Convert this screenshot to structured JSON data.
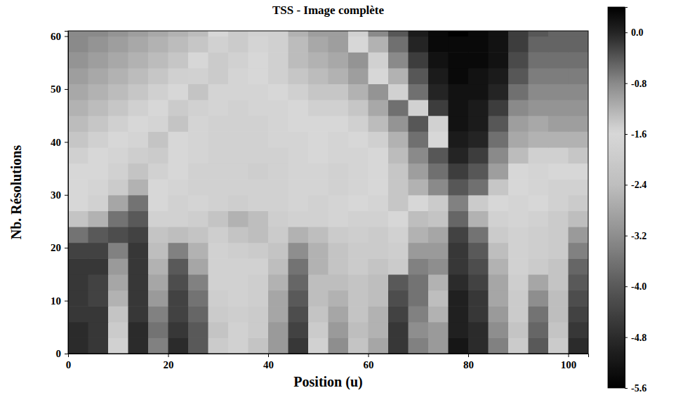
{
  "chart_data": {
    "type": "heatmap",
    "title": "TSS - Image complète",
    "x_label": "Position (u)",
    "y_label": "Nb. Résolutions",
    "xlim": [
      0,
      104
    ],
    "ylim": [
      0,
      61
    ],
    "xticks": [
      0,
      20,
      40,
      60,
      80,
      100
    ],
    "yticks": [
      0,
      10,
      20,
      30,
      40,
      50,
      60
    ],
    "x_edges": [
      0,
      4,
      8,
      12,
      16,
      20,
      24,
      28,
      32,
      36,
      40,
      44,
      48,
      52,
      56,
      60,
      64,
      68,
      72,
      76,
      80,
      84,
      88,
      92,
      96,
      100,
      104
    ],
    "y_edges": [
      0,
      3,
      6,
      9,
      12,
      15,
      18,
      21,
      24,
      27,
      30,
      33,
      36,
      39,
      42,
      45,
      48,
      51,
      54,
      57,
      60,
      63
    ],
    "z": [
      [
        -4.8,
        -4.6,
        -1.8,
        -4.8,
        -3.4,
        -4.8,
        -4.0,
        -2.0,
        -1.8,
        -2.2,
        -3.0,
        -4.6,
        -1.8,
        -3.2,
        -2.2,
        -2.8,
        -4.6,
        -3.4,
        -3.0,
        -5.2,
        -4.8,
        -3.4,
        -2.0,
        -4.0,
        -2.0,
        -4.8
      ],
      [
        -4.8,
        -4.6,
        -2.0,
        -4.8,
        -3.6,
        -4.6,
        -4.0,
        -2.2,
        -1.8,
        -2.0,
        -3.0,
        -4.4,
        -2.0,
        -3.0,
        -2.4,
        -2.6,
        -4.6,
        -3.2,
        -3.0,
        -5.0,
        -4.8,
        -3.2,
        -2.2,
        -3.8,
        -2.2,
        -4.6
      ],
      [
        -4.6,
        -4.6,
        -2.2,
        -4.6,
        -3.4,
        -4.4,
        -3.8,
        -2.0,
        -1.9,
        -2.0,
        -2.8,
        -4.2,
        -2.2,
        -2.8,
        -2.2,
        -2.6,
        -4.4,
        -3.4,
        -2.6,
        -5.0,
        -4.6,
        -3.0,
        -2.0,
        -3.6,
        -2.4,
        -4.4
      ],
      [
        -4.6,
        -4.4,
        -2.6,
        -4.6,
        -3.0,
        -4.4,
        -3.6,
        -1.9,
        -1.8,
        -1.9,
        -2.8,
        -4.0,
        -2.4,
        -2.6,
        -2.2,
        -2.4,
        -4.2,
        -3.6,
        -2.4,
        -5.0,
        -4.6,
        -2.8,
        -2.0,
        -3.2,
        -2.4,
        -4.2
      ],
      [
        -4.6,
        -4.4,
        -2.8,
        -4.6,
        -2.8,
        -4.2,
        -3.4,
        -1.8,
        -1.8,
        -1.9,
        -2.6,
        -3.8,
        -2.4,
        -2.4,
        -2.2,
        -2.4,
        -4.0,
        -3.6,
        -2.6,
        -4.8,
        -4.4,
        -2.8,
        -1.9,
        -2.8,
        -2.2,
        -4.0
      ],
      [
        -4.6,
        -4.6,
        -3.0,
        -4.6,
        -2.6,
        -4.0,
        -2.8,
        -1.8,
        -1.8,
        -1.8,
        -2.4,
        -3.6,
        -2.6,
        -2.2,
        -2.0,
        -2.2,
        -2.0,
        -3.4,
        -3.2,
        -4.6,
        -4.2,
        -2.6,
        -1.8,
        -2.0,
        -2.2,
        -3.8
      ],
      [
        -4.4,
        -4.4,
        -3.4,
        -4.6,
        -2.4,
        -3.4,
        -2.6,
        -1.8,
        -1.9,
        -2.0,
        -2.2,
        -3.2,
        -2.6,
        -2.2,
        -2.0,
        -2.0,
        -1.9,
        -3.0,
        -3.0,
        -4.6,
        -4.0,
        -2.4,
        -1.8,
        -1.9,
        -2.0,
        -3.4
      ],
      [
        -3.6,
        -4.0,
        -4.2,
        -4.4,
        -2.2,
        -2.4,
        -2.2,
        -1.9,
        -2.2,
        -2.4,
        -2.0,
        -2.6,
        -2.4,
        -2.0,
        -1.9,
        -2.0,
        -1.8,
        -2.6,
        -2.8,
        -4.4,
        -3.6,
        -2.0,
        -1.8,
        -1.9,
        -2.0,
        -3.0
      ],
      [
        -2.2,
        -2.6,
        -3.6,
        -4.0,
        -1.8,
        -1.8,
        -1.9,
        -2.2,
        -2.6,
        -2.4,
        -1.9,
        -1.8,
        -1.8,
        -1.7,
        -1.8,
        -1.8,
        -1.6,
        -2.4,
        -2.2,
        -3.8,
        -2.6,
        -1.8,
        -1.7,
        -1.8,
        -2.0,
        -2.4
      ],
      [
        -1.6,
        -1.8,
        -2.8,
        -3.6,
        -1.6,
        -1.8,
        -1.7,
        -1.8,
        -1.9,
        -1.8,
        -1.8,
        -1.7,
        -1.8,
        -1.7,
        -1.6,
        -1.7,
        -1.4,
        -1.6,
        -2.0,
        -3.4,
        -2.0,
        -1.6,
        -1.7,
        -1.6,
        -1.8,
        -2.0
      ],
      [
        -1.6,
        -1.7,
        -2.0,
        -2.6,
        -1.6,
        -1.7,
        -1.8,
        -1.8,
        -1.8,
        -1.8,
        -1.8,
        -1.7,
        -1.7,
        -1.8,
        -1.7,
        -1.6,
        -1.4,
        -1.2,
        -0.8,
        -0.4,
        -0.6,
        -1.4,
        -1.6,
        -1.7,
        -1.8,
        -1.8
      ],
      [
        -1.6,
        -1.6,
        -1.8,
        -2.2,
        -1.8,
        -1.6,
        -1.8,
        -1.8,
        -1.8,
        -1.9,
        -1.8,
        -1.7,
        -1.7,
        -1.8,
        -1.7,
        -1.6,
        -1.4,
        -1.0,
        -0.6,
        -0.2,
        -0.4,
        -1.0,
        -1.6,
        -1.7,
        -1.6,
        -1.6
      ],
      [
        -1.5,
        -1.6,
        -1.7,
        -1.9,
        -2.0,
        -1.6,
        -1.7,
        -1.8,
        -1.8,
        -1.8,
        -1.8,
        -1.7,
        -1.6,
        -1.7,
        -1.7,
        -1.6,
        -1.3,
        -0.8,
        -0.4,
        0.0,
        -0.2,
        -0.8,
        -1.3,
        -1.5,
        -1.5,
        -1.4
      ],
      [
        -1.4,
        -1.5,
        -1.6,
        -1.7,
        -2.2,
        -1.6,
        -1.7,
        -1.8,
        -1.8,
        -1.8,
        -1.7,
        -1.7,
        -1.6,
        -1.7,
        -1.6,
        -1.5,
        -1.2,
        -0.6,
        -1.6,
        0.1,
        0.0,
        -0.6,
        -1.1,
        -1.2,
        -1.2,
        -1.2
      ],
      [
        -1.3,
        -1.4,
        -1.5,
        -1.6,
        -1.7,
        -2.2,
        -1.7,
        -1.8,
        -1.8,
        -1.8,
        -1.7,
        -1.6,
        -1.6,
        -1.6,
        -1.5,
        -1.3,
        -0.9,
        -0.4,
        -1.8,
        0.2,
        0.1,
        -0.4,
        -1.0,
        -1.1,
        -1.0,
        -1.0
      ],
      [
        -1.2,
        -1.3,
        -1.4,
        -1.5,
        -1.6,
        -2.0,
        -1.8,
        -1.7,
        -1.8,
        -1.7,
        -1.7,
        -1.6,
        -1.5,
        -1.5,
        -1.4,
        -1.1,
        -0.6,
        -1.8,
        -0.2,
        0.2,
        0.1,
        -0.2,
        -0.8,
        -0.9,
        -0.9,
        -0.9
      ],
      [
        -1.1,
        -1.2,
        -1.3,
        -1.4,
        -1.5,
        -1.6,
        -2.2,
        -1.7,
        -1.7,
        -1.7,
        -1.6,
        -1.5,
        -1.4,
        -1.4,
        -1.2,
        -0.9,
        -1.8,
        -0.6,
        0.0,
        0.2,
        0.2,
        0.0,
        -0.6,
        -0.8,
        -0.8,
        -0.8
      ],
      [
        -1.0,
        -1.1,
        -1.2,
        -1.3,
        -1.4,
        -1.5,
        -1.8,
        -2.0,
        -1.7,
        -1.6,
        -1.5,
        -1.4,
        -1.3,
        -1.2,
        -1.0,
        -1.6,
        -1.2,
        -0.4,
        0.1,
        0.3,
        0.2,
        0.1,
        -0.4,
        -0.7,
        -0.7,
        -0.7
      ],
      [
        -0.9,
        -1.0,
        -1.1,
        -1.2,
        -1.3,
        -1.4,
        -1.6,
        -2.0,
        -1.8,
        -1.6,
        -1.5,
        -1.3,
        -1.2,
        -1.1,
        -0.9,
        -1.8,
        -0.8,
        -0.2,
        0.2,
        0.3,
        0.3,
        0.2,
        -0.3,
        -0.6,
        -0.6,
        -0.6
      ],
      [
        -0.8,
        -0.9,
        -1.0,
        -1.1,
        -1.2,
        -1.3,
        -1.4,
        -1.8,
        -2.0,
        -1.7,
        -1.5,
        -1.3,
        -1.1,
        -1.0,
        -1.6,
        -1.2,
        -0.6,
        0.0,
        0.3,
        0.3,
        0.3,
        0.2,
        -0.2,
        -0.5,
        -0.5,
        -0.5
      ],
      [
        -0.8,
        -0.8,
        -0.9,
        -1.0,
        -1.1,
        -1.2,
        -1.3,
        -1.6,
        -2.0,
        -1.8,
        -1.5,
        -1.2,
        -1.0,
        -1.0,
        -1.8,
        -0.8,
        -0.4,
        0.1,
        0.3,
        0.4,
        0.3,
        0.2,
        -0.2,
        -0.4,
        -0.5,
        -0.5
      ]
    ],
    "colorbar": {
      "range": [
        -5.6,
        0.4
      ],
      "ticks": [
        {
          "value": 0.0,
          "label": "0.0"
        },
        {
          "value": -0.8,
          "label": "-0.8"
        },
        {
          "value": -1.6,
          "label": "-1.6"
        },
        {
          "value": -2.4,
          "label": "-2.4"
        },
        {
          "value": -3.2,
          "label": "-3.2"
        },
        {
          "value": -4.0,
          "label": "-4.0"
        },
        {
          "value": -4.8,
          "label": "-4.8"
        },
        {
          "value": -5.6,
          "label": "-5.6"
        }
      ]
    }
  }
}
